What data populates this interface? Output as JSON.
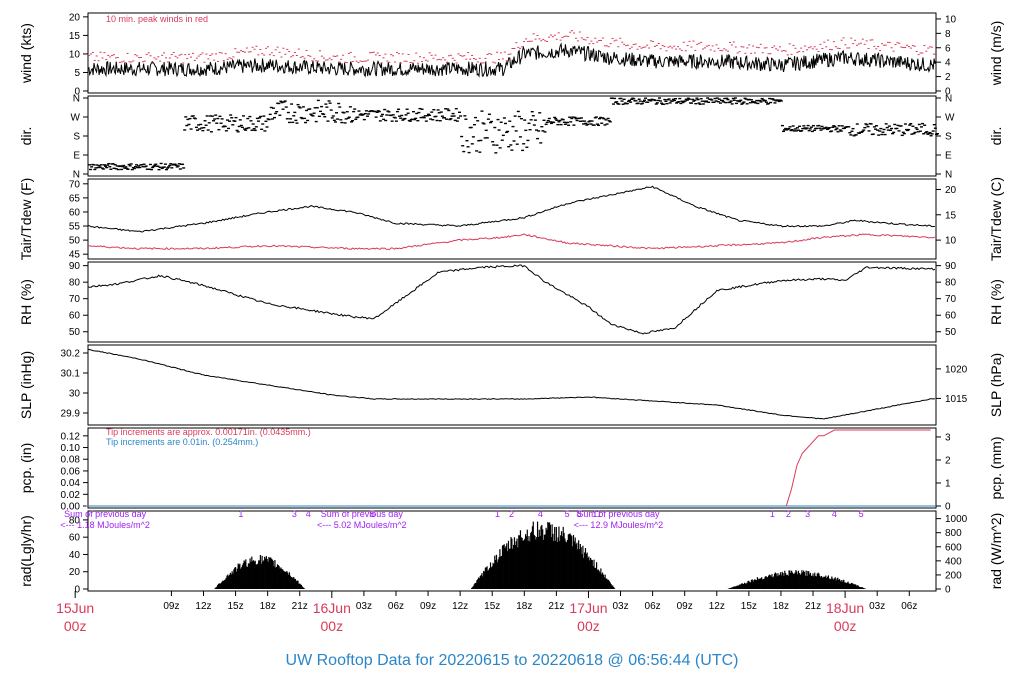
{
  "footer_title": "UW Rooftop Data for 20220615  to  20220618 @ 06:56:44  (UTC)",
  "colors": {
    "peak": "#d93a5a",
    "tdew": "#d93a5a",
    "pcp_tip": "#d93a5a",
    "note_blue": "#2a86c8",
    "purple": "#a020f0",
    "date": "#d93a5a",
    "footer": "#2a86c8"
  },
  "time_axis": {
    "hour_labels": [
      "09z",
      "12z",
      "15z",
      "18z",
      "21z",
      "03z",
      "06z",
      "09z",
      "12z",
      "15z",
      "18z",
      "21z",
      "03z",
      "06z",
      "09z",
      "12z",
      "15z",
      "18z",
      "21z",
      "03z",
      "06z"
    ],
    "hour_values": [
      9,
      12,
      15,
      18,
      21,
      27,
      30,
      33,
      36,
      39,
      42,
      45,
      51,
      54,
      57,
      60,
      63,
      66,
      69,
      75,
      78
    ],
    "date_markers": [
      {
        "hour": 0,
        "day": "15Jun",
        "time": "00z"
      },
      {
        "hour": 24,
        "day": "16Jun",
        "time": "00z"
      },
      {
        "hour": 48,
        "day": "17Jun",
        "time": "00z"
      },
      {
        "hour": 72,
        "day": "18Jun",
        "time": "00z"
      }
    ]
  },
  "chart_data": [
    {
      "type": "line",
      "ylabel_left": "wind (kts)",
      "ylabel_right": "wind (m/s)",
      "note": "10 min. peak winds in red",
      "yticks_left": [
        0,
        5,
        10,
        15,
        20
      ],
      "yticks_right": [
        0,
        2,
        4,
        6,
        8,
        10
      ],
      "ylim": [
        0,
        20.5
      ],
      "series": [
        {
          "values_x": [
            1,
            6,
            12,
            18,
            24,
            30,
            36,
            40,
            42,
            46,
            50,
            54,
            60,
            66,
            72,
            76,
            80
          ],
          "values_y": [
            6,
            6,
            6,
            7,
            6,
            6,
            6,
            6,
            10,
            11,
            9,
            8,
            8,
            7,
            9,
            8,
            7
          ]
        },
        {
          "values_x": [
            1,
            6,
            12,
            18,
            24,
            30,
            36,
            40,
            42,
            46,
            50,
            54,
            60,
            66,
            72,
            76,
            80
          ],
          "values_y": [
            9,
            9,
            9,
            11,
            9,
            9,
            9,
            9,
            14,
            15,
            13,
            12,
            12,
            11,
            13,
            12,
            11
          ]
        }
      ]
    },
    {
      "type": "scatter",
      "ylabel_left": "dir.",
      "ylabel_right": "dir.",
      "yticks_left": [
        "N",
        "E",
        "S",
        "W",
        "N"
      ],
      "yticks_right": [
        "N",
        "E",
        "S",
        "W",
        "N"
      ],
      "ylim": [
        0,
        360
      ]
    },
    {
      "type": "line",
      "ylabel_left": "Tair/Tdew (F)",
      "ylabel_right": "Tair/Tdew (C)",
      "yticks_left": [
        45,
        50,
        55,
        60,
        65,
        70
      ],
      "yticks_right": [
        10,
        15,
        20
      ],
      "ylim": [
        44,
        71
      ],
      "series": [
        {
          "values_x": [
            1,
            6,
            12,
            18,
            22,
            26,
            30,
            36,
            42,
            46,
            50,
            54,
            58,
            62,
            66,
            70,
            73,
            76,
            80
          ],
          "values_y": [
            55,
            53,
            56,
            60,
            62,
            60,
            56,
            55,
            58,
            63,
            66,
            69,
            62,
            57,
            55,
            55,
            57,
            56,
            55
          ]
        },
        {
          "values_x": [
            1,
            6,
            12,
            18,
            26,
            30,
            36,
            40,
            42,
            46,
            50,
            54,
            60,
            66,
            70,
            74,
            80
          ],
          "values_y": [
            48,
            47,
            47,
            48,
            47,
            47,
            50,
            51,
            52,
            49,
            48,
            47,
            48,
            49,
            51,
            52,
            51
          ]
        }
      ]
    },
    {
      "type": "line",
      "ylabel_left": "RH (%)",
      "ylabel_right": "RH (%)",
      "yticks_left": [
        50,
        60,
        70,
        80,
        90
      ],
      "yticks_right": [
        50,
        60,
        70,
        80,
        90
      ],
      "ylim": [
        45,
        91
      ],
      "series": [
        {
          "values_x": [
            1,
            4,
            8,
            12,
            18,
            22,
            26,
            28,
            34,
            38,
            42,
            44,
            48,
            50,
            53,
            56,
            60,
            66,
            70,
            72,
            74,
            80
          ],
          "values_y": [
            77,
            79,
            84,
            78,
            67,
            63,
            59,
            58,
            86,
            89,
            90,
            80,
            65,
            55,
            49,
            52,
            75,
            81,
            82,
            81,
            89,
            88
          ]
        }
      ]
    },
    {
      "type": "line",
      "ylabel_left": "SLP (inHg)",
      "ylabel_right": "SLP (hPa)",
      "yticks_left": [
        29.9,
        30.0,
        30.1,
        30.2
      ],
      "yticks_right": [
        1015,
        1020
      ],
      "ylim": [
        29.85,
        30.23
      ],
      "series": [
        {
          "values_x": [
            1,
            6,
            12,
            18,
            24,
            28,
            36,
            42,
            48,
            54,
            60,
            66,
            70,
            74,
            80
          ],
          "values_y": [
            30.22,
            30.17,
            30.09,
            30.04,
            29.99,
            29.97,
            29.97,
            29.97,
            29.98,
            29.96,
            29.94,
            29.89,
            29.87,
            29.91,
            29.97
          ]
        }
      ]
    },
    {
      "type": "line",
      "ylabel_left": "pcp. (in)",
      "ylabel_right": "pcp. (mm)",
      "note_1": "Tip increments are approx. 0.00171in. (0.0435mm.)",
      "note_2": "Tip increments are 0.01in. (0.254mm.)",
      "yticks_left": [
        "0.00",
        "0.02",
        "0.04",
        "0.06",
        "0.08",
        "0.10",
        "0.12"
      ],
      "yticks_right": [
        0,
        1,
        2,
        3
      ],
      "ylim": [
        0,
        0.13
      ],
      "series": [
        {
          "values_x": [
            1,
            66.5,
            67,
            67.5,
            68,
            68.5,
            69,
            69.5,
            70,
            71,
            80
          ],
          "values_y": [
            0,
            0,
            0.03,
            0.07,
            0.09,
            0.1,
            0.11,
            0.12,
            0.12,
            0.13,
            0.13
          ]
        }
      ]
    },
    {
      "type": "area",
      "ylabel_left": "rad(Lgly/hr)",
      "ylabel_right": "rad (W/m^2)",
      "yticks_left": [
        0,
        20,
        40,
        60,
        80
      ],
      "yticks_right": [
        0,
        200,
        400,
        600,
        800,
        1000
      ],
      "ylim": [
        0,
        88
      ],
      "sum_labels": [
        {
          "title": "Sum of previous day",
          "value": "<--- 1.18 MJoules/m^2",
          "hour": 0
        },
        {
          "title": "Sum of previous day",
          "value": "<--- 5.02 MJoules/m^2",
          "hour": 24
        },
        {
          "title": "Sum of previous day",
          "value": "<--- 12.9 MJoules/m^2",
          "hour": 48
        }
      ],
      "event_markers": [
        {
          "hour": 15.5,
          "text": "1"
        },
        {
          "hour": 20.5,
          "text": "3"
        },
        {
          "hour": 21.8,
          "text": "4"
        },
        {
          "hour": 27.8,
          "text": "5"
        },
        {
          "hour": 39.5,
          "text": "1"
        },
        {
          "hour": 40.8,
          "text": "2"
        },
        {
          "hour": 43.5,
          "text": "4"
        },
        {
          "hour": 46.0,
          "text": "5"
        },
        {
          "hour": 47.1,
          "text": "8"
        },
        {
          "hour": 48.8,
          "text": "11"
        },
        {
          "hour": 65.2,
          "text": "1"
        },
        {
          "hour": 66.7,
          "text": "2"
        },
        {
          "hour": 68.5,
          "text": "3"
        },
        {
          "hour": 71.0,
          "text": "4"
        },
        {
          "hour": 73.5,
          "text": "5"
        }
      ]
    }
  ]
}
